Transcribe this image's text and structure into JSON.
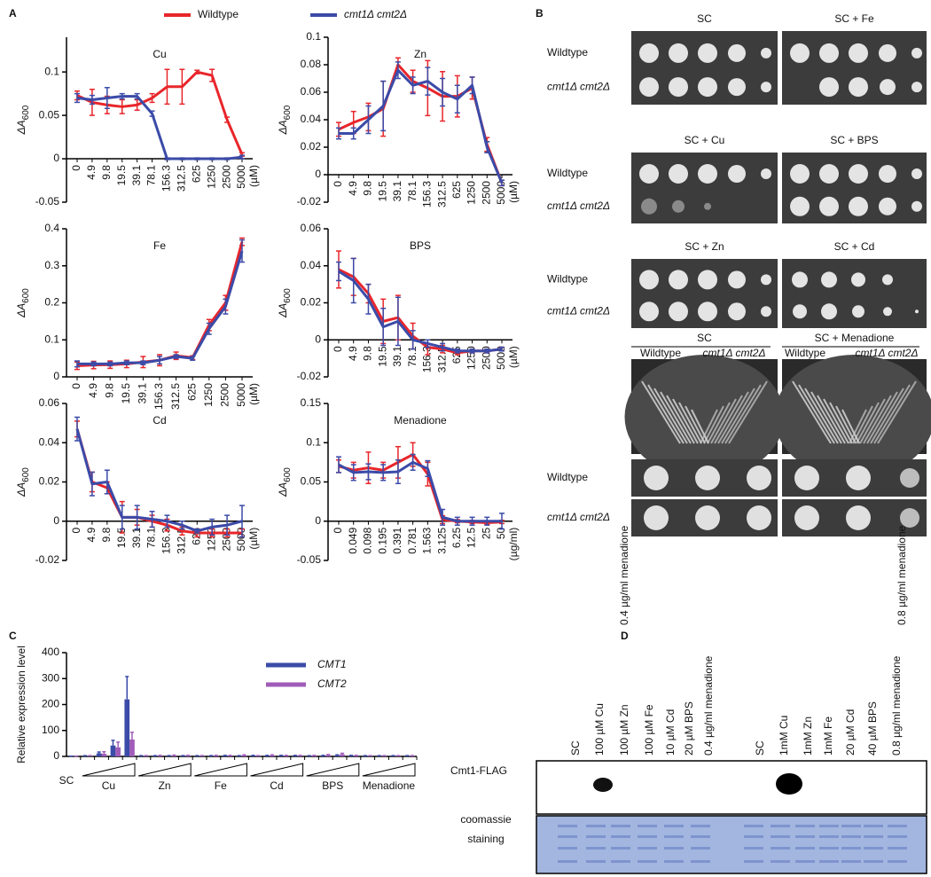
{
  "panel_labels": [
    "A",
    "B",
    "C",
    "D"
  ],
  "chart_data": [
    {
      "type": "line",
      "title": "Cu",
      "ylabel": "ΔA",
      "ylabel_sub": "600",
      "categories": [
        "0",
        "4.9",
        "9.8",
        "19.5",
        "39.1",
        "78.1",
        "156.3",
        "312.5",
        "625",
        "1250",
        "2500",
        "5000"
      ],
      "x_unit": "(µM)",
      "ylim": [
        -0.05,
        0.14
      ],
      "yticks": [
        -0.05,
        0,
        0.05,
        0.1
      ],
      "series": [
        {
          "name": "Wildtype",
          "color": "#e8262b",
          "values": [
            0.073,
            0.065,
            0.062,
            0.06,
            0.062,
            0.07,
            0.083,
            0.083,
            0.1,
            0.096,
            0.045,
            0.005
          ],
          "errors": [
            0.005,
            0.015,
            0.01,
            0.008,
            0.006,
            0.005,
            0.02,
            0.02,
            0.002,
            0.007,
            0.003,
            0.002
          ]
        },
        {
          "name": "cmt1Δ cmt2Δ",
          "color": "#3b4ba8",
          "values": [
            0.07,
            0.068,
            0.07,
            0.072,
            0.072,
            0.052,
            0,
            0,
            0,
            0,
            0,
            0.002
          ],
          "errors": [
            0.005,
            0.005,
            0.012,
            0.003,
            0.003,
            0.003,
            0.001,
            0.001,
            0.001,
            0.001,
            0.001,
            0.002
          ]
        }
      ]
    },
    {
      "type": "line",
      "title": "Zn",
      "ylabel": "ΔA",
      "ylabel_sub": "600",
      "categories": [
        "0",
        "4.9",
        "9.8",
        "19.5",
        "39.1",
        "78.1",
        "156.3",
        "312.5",
        "625",
        "1250",
        "2500",
        "5000"
      ],
      "x_unit": "(µM)",
      "ylim": [
        -0.02,
        0.1
      ],
      "yticks": [
        -0.02,
        0,
        0.02,
        0.04,
        0.06,
        0.08,
        0.1
      ],
      "series": [
        {
          "color": "#e8262b",
          "values": [
            0.033,
            0.038,
            0.042,
            0.048,
            0.08,
            0.068,
            0.063,
            0.057,
            0.057,
            0.063,
            0.022,
            -0.006
          ],
          "errors": [
            0.005,
            0.008,
            0.01,
            0.02,
            0.005,
            0.008,
            0.02,
            0.018,
            0.015,
            0.008,
            0.005,
            0.002
          ]
        },
        {
          "color": "#3b4ba8",
          "values": [
            0.03,
            0.03,
            0.04,
            0.05,
            0.076,
            0.065,
            0.068,
            0.06,
            0.055,
            0.065,
            0.02,
            -0.006
          ],
          "errors": [
            0.004,
            0.004,
            0.01,
            0.018,
            0.006,
            0.006,
            0.01,
            0.01,
            0.01,
            0.006,
            0.004,
            0.002
          ]
        }
      ]
    },
    {
      "type": "line",
      "title": "Fe",
      "ylabel": "ΔA",
      "ylabel_sub": "600",
      "categories": [
        "0",
        "4.9",
        "9.8",
        "19.5",
        "39.1",
        "156.3",
        "312.5",
        "625",
        "1250",
        "2500",
        "5000"
      ],
      "x_unit": "(µM)",
      "ylim": [
        0,
        0.4
      ],
      "yticks": [
        0,
        0.1,
        0.2,
        0.3,
        0.4
      ],
      "series": [
        {
          "color": "#e8262b",
          "values": [
            0.03,
            0.032,
            0.033,
            0.035,
            0.04,
            0.045,
            0.057,
            0.052,
            0.14,
            0.2,
            0.365
          ],
          "errors": [
            0.01,
            0.01,
            0.01,
            0.01,
            0.015,
            0.015,
            0.01,
            0.005,
            0.015,
            0.02,
            0.01
          ]
        },
        {
          "color": "#3b4ba8",
          "values": [
            0.035,
            0.035,
            0.035,
            0.038,
            0.038,
            0.045,
            0.055,
            0.05,
            0.13,
            0.19,
            0.34
          ],
          "errors": [
            0.008,
            0.005,
            0.005,
            0.005,
            0.005,
            0.01,
            0.005,
            0.005,
            0.015,
            0.02,
            0.03
          ]
        }
      ]
    },
    {
      "type": "line",
      "title": "BPS",
      "ylabel": "ΔA",
      "ylabel_sub": "600",
      "categories": [
        "0",
        "4.9",
        "9.8",
        "19.5",
        "39.1",
        "78.1",
        "156.3",
        "312.5",
        "625",
        "1250",
        "2500",
        "5000"
      ],
      "x_unit": "(µM)",
      "ylim": [
        -0.02,
        0.06
      ],
      "yticks": [
        -0.02,
        0,
        0.02,
        0.04,
        0.06
      ],
      "series": [
        {
          "color": "#e8262b",
          "values": [
            0.038,
            0.034,
            0.025,
            0.01,
            0.012,
            0.002,
            -0.004,
            -0.005,
            -0.007,
            -0.006,
            -0.006,
            -0.005
          ],
          "errors": [
            0.01,
            0.01,
            0.005,
            0.012,
            0.012,
            0.007,
            0.004,
            0.002,
            0.001,
            0.001,
            0.001,
            0.001
          ]
        },
        {
          "color": "#3b4ba8",
          "values": [
            0.037,
            0.032,
            0.022,
            0.007,
            0.01,
            0,
            -0.002,
            -0.004,
            -0.006,
            -0.006,
            -0.006,
            -0.005
          ],
          "errors": [
            0.005,
            0.012,
            0.008,
            0.01,
            0.013,
            0.005,
            0.002,
            0.002,
            0.001,
            0.001,
            0.001,
            0.001
          ]
        }
      ]
    },
    {
      "type": "line",
      "title": "Cd",
      "ylabel": "ΔA",
      "ylabel_sub": "600",
      "categories": [
        "0",
        "4.9",
        "9.8",
        "19.5",
        "39.1",
        "78.1",
        "156.3",
        "312.5",
        "625",
        "1250",
        "2500",
        "5000"
      ],
      "x_unit": "(µM)",
      "ylim": [
        -0.02,
        0.06
      ],
      "yticks": [
        -0.02,
        0,
        0.02,
        0.04,
        0.06
      ],
      "series": [
        {
          "color": "#e8262b",
          "values": [
            0.047,
            0.02,
            0.017,
            0.002,
            0.002,
            0,
            -0.002,
            -0.005,
            -0.006,
            -0.006,
            -0.006,
            -0.006
          ],
          "errors": [
            0.004,
            0.005,
            0.003,
            0.008,
            0.004,
            0.003,
            0.003,
            0.002,
            0.002,
            0.002,
            0.002,
            0.002
          ]
        },
        {
          "color": "#3b4ba8",
          "values": [
            0.047,
            0.019,
            0.02,
            0.002,
            0.002,
            0.001,
            0,
            -0.002,
            -0.005,
            -0.003,
            -0.002,
            0
          ],
          "errors": [
            0.006,
            0.006,
            0.006,
            0.006,
            0.006,
            0.004,
            0.003,
            0.002,
            0.001,
            0.004,
            0.005,
            0.008
          ]
        }
      ]
    },
    {
      "type": "line",
      "title": "Menadione",
      "ylabel": "ΔA",
      "ylabel_sub": "600",
      "categories": [
        "0",
        "0.049",
        "0.098",
        "0.195",
        "0.391",
        "0.781",
        "1.563",
        "3.125",
        "6.25",
        "12.5",
        "25",
        "50"
      ],
      "x_unit": "(µg/ml)",
      "ylim": [
        -0.05,
        0.15
      ],
      "yticks": [
        -0.05,
        0,
        0.05,
        0.1,
        0.15
      ],
      "series": [
        {
          "color": "#e8262b",
          "values": [
            0.07,
            0.065,
            0.068,
            0.065,
            0.075,
            0.085,
            0.06,
            0.002,
            0,
            -0.001,
            -0.002,
            -0.001
          ],
          "errors": [
            0.008,
            0.01,
            0.02,
            0.01,
            0.02,
            0.015,
            0.015,
            0.005,
            0.002,
            0.002,
            0.002,
            0.002
          ]
        },
        {
          "color": "#3b4ba8",
          "values": [
            0.072,
            0.062,
            0.063,
            0.062,
            0.063,
            0.075,
            0.067,
            0.005,
            0,
            0,
            0,
            0
          ],
          "errors": [
            0.01,
            0.01,
            0.01,
            0.01,
            0.015,
            0.01,
            0.01,
            0.01,
            0.005,
            0.005,
            0.005,
            0.01
          ]
        }
      ]
    },
    {
      "type": "bar",
      "ylabel": "Relative expression level",
      "categories": [
        "SC",
        null,
        null,
        null,
        null,
        null,
        null,
        null,
        null,
        null,
        null,
        null,
        null,
        null,
        null,
        null,
        null,
        null,
        null,
        null,
        null,
        null,
        null,
        null,
        null
      ],
      "groups": [
        "Cu",
        "Zn",
        "Fe",
        "Cd",
        "BPS",
        "Menadione"
      ],
      "ylim": [
        0,
        400
      ],
      "yticks": [
        0,
        100,
        200,
        300,
        400
      ],
      "series": [
        {
          "name": "CMT1",
          "color": "#3b4ba8",
          "values": [
            1,
            2,
            12,
            42,
            220,
            2,
            2,
            2,
            2,
            2,
            2,
            3,
            2,
            3,
            3,
            3,
            3,
            2,
            3,
            4,
            3,
            2,
            2,
            2,
            2
          ],
          "errors": [
            0,
            1,
            5,
            20,
            88,
            1,
            1,
            1,
            1,
            1,
            1,
            1,
            1,
            1,
            1,
            1,
            1,
            1,
            1,
            2,
            1,
            1,
            1,
            1,
            1
          ]
        },
        {
          "name": "CMT2",
          "color": "#a05cb8",
          "values": [
            1,
            2,
            10,
            35,
            65,
            2,
            3,
            3,
            3,
            2,
            3,
            3,
            4,
            2,
            4,
            3,
            3,
            3,
            5,
            8,
            3,
            2,
            2,
            2,
            2
          ],
          "errors": [
            0,
            1,
            8,
            20,
            28,
            1,
            1,
            2,
            1,
            1,
            1,
            1,
            2,
            1,
            2,
            1,
            1,
            1,
            2,
            4,
            1,
            1,
            1,
            1,
            1
          ]
        }
      ]
    }
  ],
  "panel_b": {
    "spot_plates": [
      {
        "conditions": [
          "SC",
          "SC +  Fe"
        ],
        "strains": [
          "Wildtype",
          "cmt1Δ cmt2Δ"
        ]
      },
      {
        "conditions": [
          "SC + Cu",
          "SC +  BPS"
        ],
        "strains": [
          "Wildtype",
          "cmt1Δ cmt2Δ"
        ]
      },
      {
        "conditions": [
          "SC +  Zn",
          "SC +  Cd"
        ],
        "strains": [
          "Wildtype",
          "cmt1Δ cmt2Δ"
        ]
      }
    ],
    "streak_plates": {
      "conditions": [
        "SC",
        "SC + Menadione"
      ],
      "strains": [
        "Wildtype",
        "cmt1Δ cmt2Δ",
        "Wildtype",
        "cmt1Δ cmt2Δ"
      ]
    },
    "menadione_spots": {
      "strains": [
        "Wildtype",
        "cmt1Δ cmt2Δ"
      ],
      "doses": [
        "0.4 µg/ml menadione",
        "0.8 µg/ml menadione"
      ]
    }
  },
  "panel_d": {
    "lanes": [
      "SC",
      "100 µM Cu",
      "100 µM Zn",
      "100 µM Fe",
      "10 µM Cd",
      "20 µM BPS",
      "0.4 µg/ml menadione",
      "SC",
      "1mM Cu",
      "1mM Zn",
      "1mM Fe",
      "20 µM Cd",
      "40 µM BPS",
      "0.8 µg/ml menadione"
    ],
    "blot_label": "Cmt1-FLAG",
    "stain_label": [
      "coomassie",
      "staining"
    ]
  }
}
